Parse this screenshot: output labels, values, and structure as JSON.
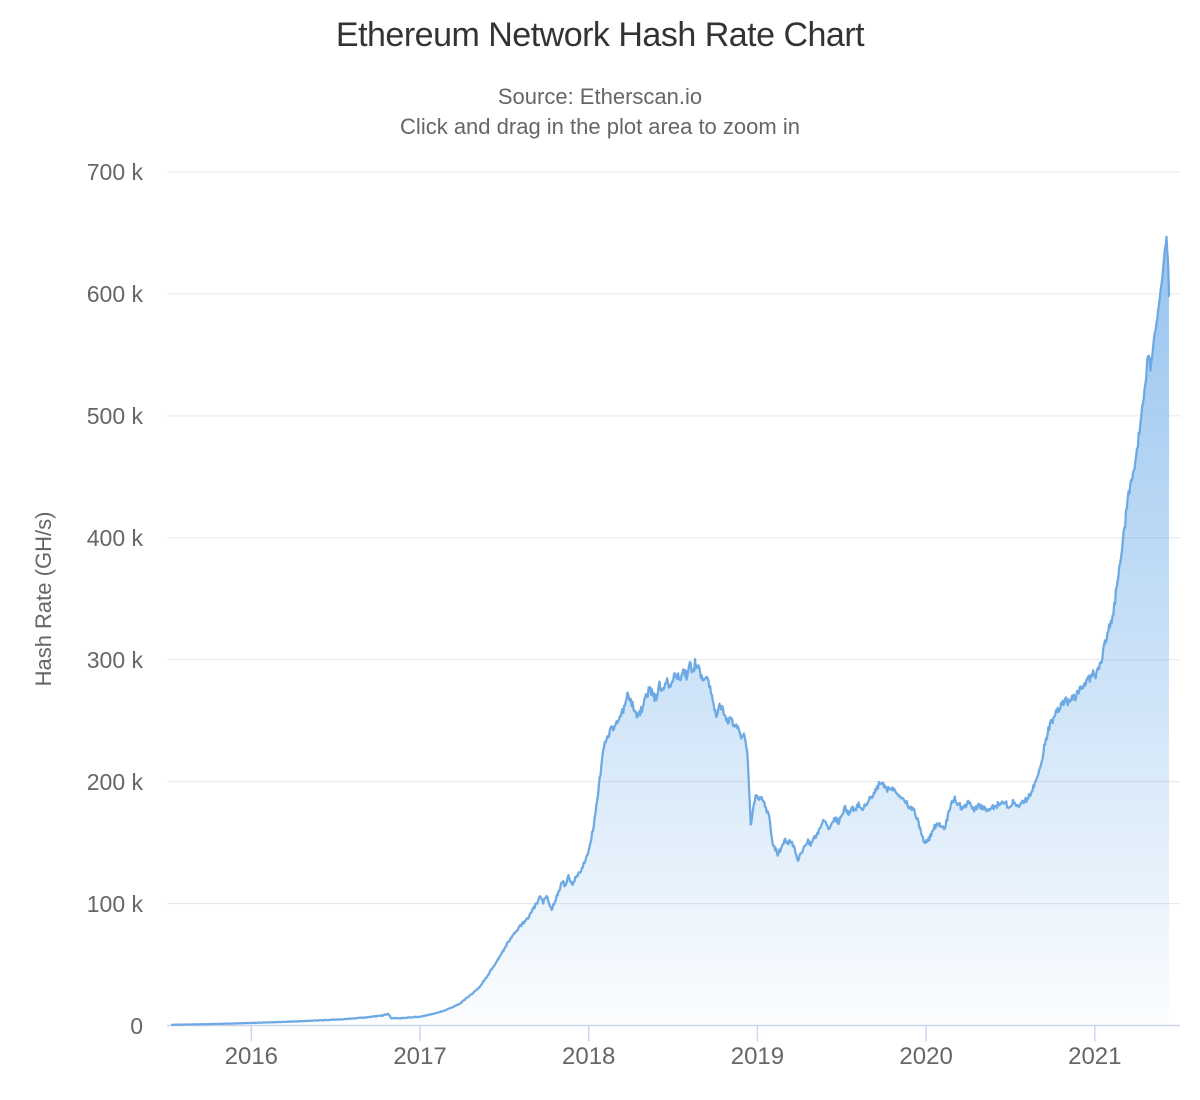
{
  "chart_data": {
    "type": "area",
    "title": "Ethereum Network Hash Rate Chart",
    "subtitle1": "Source: Etherscan.io",
    "subtitle2": "Click and drag in the plot area to zoom in",
    "xlabel": "",
    "ylabel": "Hash Rate (GH/s)",
    "legend": false,
    "grid": true,
    "x_range": [
      2015.5,
      2021.505
    ],
    "ylim": [
      0,
      700000
    ],
    "x_ticks": [
      2016,
      2017,
      2018,
      2019,
      2020,
      2021
    ],
    "y_ticks": [
      {
        "value": 0,
        "label": "0"
      },
      {
        "value": 100000,
        "label": "100 k"
      },
      {
        "value": 200000,
        "label": "200 k"
      },
      {
        "value": 300000,
        "label": "300 k"
      },
      {
        "value": 400000,
        "label": "400 k"
      },
      {
        "value": 500000,
        "label": "500 k"
      },
      {
        "value": 600000,
        "label": "600 k"
      },
      {
        "value": 700000,
        "label": "700 k"
      }
    ],
    "series": [
      {
        "name": "Hash Rate",
        "unit": "GH/s",
        "x_unit": "decimal_year",
        "points": [
          [
            2015.53,
            600
          ],
          [
            2015.65,
            900
          ],
          [
            2015.8,
            1300
          ],
          [
            2016.0,
            2100
          ],
          [
            2016.2,
            3000
          ],
          [
            2016.4,
            4200
          ],
          [
            2016.55,
            5200
          ],
          [
            2016.68,
            6600
          ],
          [
            2016.78,
            8300
          ],
          [
            2016.815,
            9300
          ],
          [
            2016.83,
            5900
          ],
          [
            2016.9,
            6200
          ],
          [
            2017.0,
            7200
          ],
          [
            2017.08,
            9600
          ],
          [
            2017.16,
            13000
          ],
          [
            2017.23,
            17500
          ],
          [
            2017.29,
            24000
          ],
          [
            2017.35,
            31000
          ],
          [
            2017.41,
            43000
          ],
          [
            2017.47,
            56000
          ],
          [
            2017.53,
            70000
          ],
          [
            2017.59,
            81000
          ],
          [
            2017.64,
            88000
          ],
          [
            2017.69,
            100000
          ],
          [
            2017.71,
            105000
          ],
          [
            2017.73,
            101000
          ],
          [
            2017.75,
            107000
          ],
          [
            2017.78,
            95000
          ],
          [
            2017.81,
            106000
          ],
          [
            2017.83,
            113000
          ],
          [
            2017.845,
            119000
          ],
          [
            2017.86,
            114000
          ],
          [
            2017.88,
            122000
          ],
          [
            2017.9,
            115000
          ],
          [
            2017.93,
            123000
          ],
          [
            2017.96,
            129000
          ],
          [
            2018.0,
            142000
          ],
          [
            2018.03,
            165000
          ],
          [
            2018.06,
            196000
          ],
          [
            2018.09,
            230000
          ],
          [
            2018.13,
            242000
          ],
          [
            2018.17,
            249000
          ],
          [
            2018.2,
            257000
          ],
          [
            2018.23,
            270000
          ],
          [
            2018.26,
            263000
          ],
          [
            2018.29,
            253000
          ],
          [
            2018.32,
            261000
          ],
          [
            2018.36,
            277000
          ],
          [
            2018.38,
            271000
          ],
          [
            2018.4,
            268000
          ],
          [
            2018.42,
            279000
          ],
          [
            2018.44,
            275000
          ],
          [
            2018.46,
            285000
          ],
          [
            2018.48,
            279000
          ],
          [
            2018.52,
            289000
          ],
          [
            2018.54,
            282000
          ],
          [
            2018.56,
            292000
          ],
          [
            2018.58,
            287000
          ],
          [
            2018.6,
            295000
          ],
          [
            2018.62,
            290000
          ],
          [
            2018.63,
            297000
          ],
          [
            2018.65,
            292000
          ],
          [
            2018.67,
            286000
          ],
          [
            2018.7,
            287000
          ],
          [
            2018.72,
            277000
          ],
          [
            2018.74,
            263000
          ],
          [
            2018.755,
            255000
          ],
          [
            2018.77,
            262000
          ],
          [
            2018.78,
            264000
          ],
          [
            2018.8,
            257000
          ],
          [
            2018.82,
            249000
          ],
          [
            2018.84,
            253000
          ],
          [
            2018.86,
            244000
          ],
          [
            2018.88,
            246000
          ],
          [
            2018.9,
            236000
          ],
          [
            2018.92,
            237000
          ],
          [
            2018.94,
            224000
          ],
          [
            2018.95,
            196000
          ],
          [
            2018.96,
            164000
          ],
          [
            2018.99,
            189000
          ],
          [
            2019.01,
            185000
          ],
          [
            2019.03,
            187000
          ],
          [
            2019.05,
            179000
          ],
          [
            2019.07,
            171000
          ],
          [
            2019.09,
            150000
          ],
          [
            2019.11,
            144000
          ],
          [
            2019.12,
            141000
          ],
          [
            2019.14,
            145000
          ],
          [
            2019.16,
            152000
          ],
          [
            2019.18,
            150000
          ],
          [
            2019.2,
            151000
          ],
          [
            2019.22,
            145000
          ],
          [
            2019.24,
            134000
          ],
          [
            2019.26,
            142000
          ],
          [
            2019.28,
            146000
          ],
          [
            2019.3,
            151000
          ],
          [
            2019.32,
            148000
          ],
          [
            2019.34,
            154000
          ],
          [
            2019.36,
            158000
          ],
          [
            2019.39,
            169000
          ],
          [
            2019.41,
            164000
          ],
          [
            2019.42,
            160000
          ],
          [
            2019.44,
            166000
          ],
          [
            2019.46,
            170000
          ],
          [
            2019.48,
            167000
          ],
          [
            2019.5,
            174000
          ],
          [
            2019.52,
            178000
          ],
          [
            2019.54,
            174000
          ],
          [
            2019.56,
            179000
          ],
          [
            2019.58,
            177000
          ],
          [
            2019.6,
            181000
          ],
          [
            2019.62,
            177000
          ],
          [
            2019.64,
            180000
          ],
          [
            2019.66,
            185000
          ],
          [
            2019.68,
            187000
          ],
          [
            2019.7,
            192000
          ],
          [
            2019.73,
            200000
          ],
          [
            2019.75,
            196000
          ],
          [
            2019.77,
            193000
          ],
          [
            2019.79,
            196000
          ],
          [
            2019.81,
            194000
          ],
          [
            2019.83,
            189000
          ],
          [
            2019.85,
            187000
          ],
          [
            2019.87,
            185000
          ],
          [
            2019.89,
            181000
          ],
          [
            2019.91,
            178000
          ],
          [
            2019.93,
            176000
          ],
          [
            2019.95,
            168000
          ],
          [
            2019.97,
            158000
          ],
          [
            2019.99,
            149000
          ],
          [
            2020.01,
            152000
          ],
          [
            2020.03,
            156000
          ],
          [
            2020.05,
            163000
          ],
          [
            2020.07,
            166000
          ],
          [
            2020.09,
            164000
          ],
          [
            2020.11,
            162000
          ],
          [
            2020.13,
            172000
          ],
          [
            2020.15,
            182000
          ],
          [
            2020.17,
            186000
          ],
          [
            2020.19,
            182000
          ],
          [
            2020.21,
            179000
          ],
          [
            2020.23,
            180000
          ],
          [
            2020.25,
            183000
          ],
          [
            2020.27,
            179000
          ],
          [
            2020.29,
            177000
          ],
          [
            2020.31,
            180000
          ],
          [
            2020.33,
            179000
          ],
          [
            2020.35,
            177000
          ],
          [
            2020.37,
            178000
          ],
          [
            2020.39,
            180000
          ],
          [
            2020.41,
            179000
          ],
          [
            2020.43,
            182000
          ],
          [
            2020.45,
            185000
          ],
          [
            2020.47,
            182000
          ],
          [
            2020.49,
            180000
          ],
          [
            2020.51,
            183000
          ],
          [
            2020.53,
            182000
          ],
          [
            2020.55,
            181000
          ],
          [
            2020.57,
            183000
          ],
          [
            2020.6,
            186000
          ],
          [
            2020.62,
            190000
          ],
          [
            2020.64,
            196000
          ],
          [
            2020.66,
            205000
          ],
          [
            2020.68,
            214000
          ],
          [
            2020.7,
            228000
          ],
          [
            2020.72,
            240000
          ],
          [
            2020.74,
            248000
          ],
          [
            2020.76,
            254000
          ],
          [
            2020.78,
            258000
          ],
          [
            2020.8,
            263000
          ],
          [
            2020.82,
            267000
          ],
          [
            2020.84,
            266000
          ],
          [
            2020.86,
            270000
          ],
          [
            2020.88,
            268000
          ],
          [
            2020.9,
            272000
          ],
          [
            2020.92,
            276000
          ],
          [
            2020.94,
            280000
          ],
          [
            2020.96,
            288000
          ],
          [
            2020.975,
            282000
          ],
          [
            2020.99,
            291000
          ],
          [
            2021.005,
            287000
          ],
          [
            2021.02,
            293000
          ],
          [
            2021.04,
            301000
          ],
          [
            2021.06,
            314000
          ],
          [
            2021.08,
            323000
          ],
          [
            2021.1,
            331000
          ],
          [
            2021.12,
            349000
          ],
          [
            2021.14,
            371000
          ],
          [
            2021.16,
            392000
          ],
          [
            2021.18,
            413000
          ],
          [
            2021.2,
            437000
          ],
          [
            2021.22,
            449000
          ],
          [
            2021.24,
            463000
          ],
          [
            2021.26,
            481000
          ],
          [
            2021.28,
            503000
          ],
          [
            2021.3,
            521000
          ],
          [
            2021.315,
            548000
          ],
          [
            2021.33,
            537000
          ],
          [
            2021.345,
            556000
          ],
          [
            2021.36,
            572000
          ],
          [
            2021.38,
            590000
          ],
          [
            2021.4,
            615000
          ],
          [
            2021.41,
            630000
          ],
          [
            2021.425,
            646000
          ],
          [
            2021.435,
            622000
          ],
          [
            2021.44,
            600000
          ]
        ]
      }
    ]
  },
  "style": {
    "line_color": "#6da9e2",
    "fill_color": "#7cb5ec",
    "grid_color": "#e6e6e6",
    "axis_line_color": "#ccd6eb",
    "title_color": "#333333",
    "text_color": "#666666",
    "background": "#ffffff"
  }
}
